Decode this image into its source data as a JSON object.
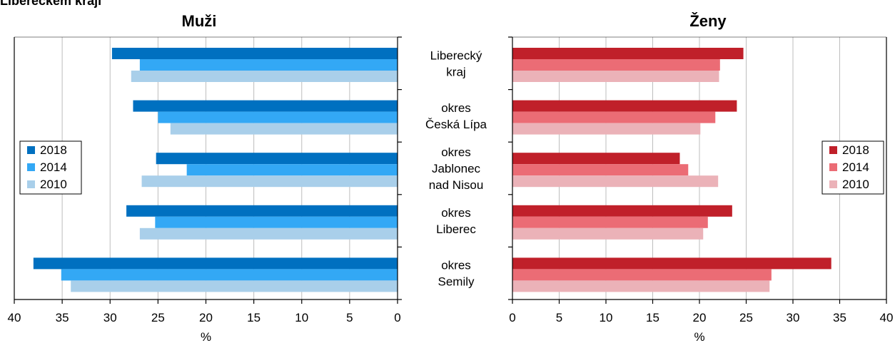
{
  "page": {
    "title": "Libereckém kraji"
  },
  "colors": {
    "men": {
      "2018": "#0070c0",
      "2014": "#33a8f5",
      "2010": "#a9cfea"
    },
    "women": {
      "2018": "#c0202a",
      "2014": "#eb6c75",
      "2010": "#ebb2b8"
    }
  },
  "chart_data": [
    {
      "type": "bar",
      "orientation": "horizontal",
      "title": "Muži",
      "xlabel": "%",
      "ylabel": "",
      "xlim": [
        0,
        40
      ],
      "x_reversed": true,
      "xticks": [
        40,
        35,
        30,
        25,
        20,
        15,
        10,
        5,
        0
      ],
      "grid": true,
      "legend_position": "left",
      "categories": [
        "Liberecký kraj",
        "okres Česká Lípa",
        "okres Jablonec nad Nisou",
        "okres Liberec",
        "okres Semily"
      ],
      "series": [
        {
          "name": "2018",
          "values": [
            29.8,
            27.6,
            25.2,
            28.3,
            38.0
          ]
        },
        {
          "name": "2014",
          "values": [
            26.9,
            25.0,
            22.0,
            25.3,
            35.1
          ]
        },
        {
          "name": "2010",
          "values": [
            27.8,
            23.7,
            26.7,
            26.9,
            34.1
          ]
        }
      ]
    },
    {
      "type": "bar",
      "orientation": "horizontal",
      "title": "Ženy",
      "xlabel": "%",
      "ylabel": "",
      "xlim": [
        0,
        40
      ],
      "x_reversed": false,
      "xticks": [
        0,
        5,
        10,
        15,
        20,
        25,
        30,
        35,
        40
      ],
      "grid": true,
      "legend_position": "right",
      "categories": [
        "Liberecký kraj",
        "okres Česká Lípa",
        "okres Jablonec nad Nisou",
        "okres Liberec",
        "okres Semily"
      ],
      "series": [
        {
          "name": "2018",
          "values": [
            24.7,
            24.0,
            17.9,
            23.5,
            34.1
          ]
        },
        {
          "name": "2014",
          "values": [
            22.2,
            21.7,
            18.8,
            20.9,
            27.7
          ]
        },
        {
          "name": "2010",
          "values": [
            22.1,
            20.1,
            22.0,
            20.4,
            27.5
          ]
        }
      ]
    }
  ],
  "category_labels": [
    [
      "Liberecký",
      "kraj"
    ],
    [
      "okres",
      "Česká Lípa"
    ],
    [
      "okres",
      "Jablonec",
      "nad Nisou"
    ],
    [
      "okres",
      "Liberec"
    ],
    [
      "okres",
      "Semily"
    ]
  ]
}
